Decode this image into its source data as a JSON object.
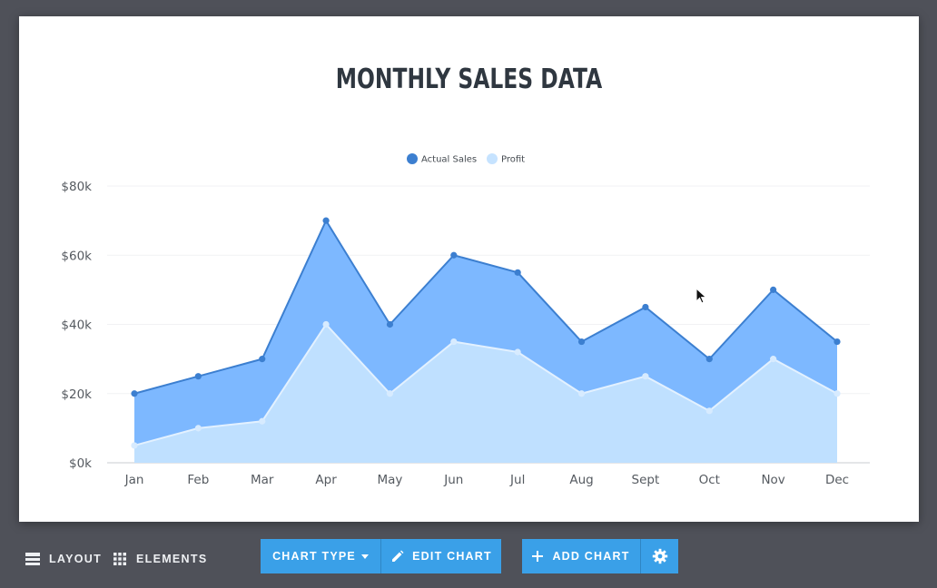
{
  "chart_card": {
    "title": "MONTHLY SALES DATA"
  },
  "chart_data": {
    "type": "area",
    "title": "MONTHLY SALES DATA",
    "categories": [
      "Jan",
      "Feb",
      "Mar",
      "Apr",
      "May",
      "Jun",
      "Jul",
      "Aug",
      "Sept",
      "Oct",
      "Nov",
      "Dec"
    ],
    "series": [
      {
        "name": "Actual Sales",
        "color": "#3a7bd5",
        "fill": "#7db8ff",
        "values": [
          20000,
          25000,
          30000,
          70000,
          40000,
          60000,
          55000,
          35000,
          45000,
          30000,
          50000,
          35000
        ]
      },
      {
        "name": "Profit",
        "color": "#c6e3ff",
        "fill": "#bfe0ff",
        "values": [
          5000,
          10000,
          12000,
          40000,
          20000,
          35000,
          32000,
          20000,
          25000,
          15000,
          30000,
          20000
        ]
      }
    ],
    "yticks": [
      "$0k",
      "$20k",
      "$40k",
      "$60k",
      "$80k"
    ],
    "ylim": [
      0,
      80000
    ],
    "legend_position": "top-center",
    "grid": true
  },
  "toolbar": {
    "layout_label": "LAYOUT",
    "elements_label": "ELEMENTS",
    "chart_type_label": "CHART TYPE",
    "edit_chart_label": "EDIT CHART",
    "add_chart_label": "ADD CHART"
  },
  "icons": {
    "layout": "layout-icon",
    "elements": "grid-icon",
    "edit": "pencil-icon",
    "add": "plus-icon",
    "settings": "gear-icon",
    "cursor": "mouse-cursor-icon"
  },
  "colors": {
    "background": "#4f5159",
    "button": "#3aa0e8",
    "actual_sales": "#7db8ff",
    "profit": "#bfe0ff"
  }
}
